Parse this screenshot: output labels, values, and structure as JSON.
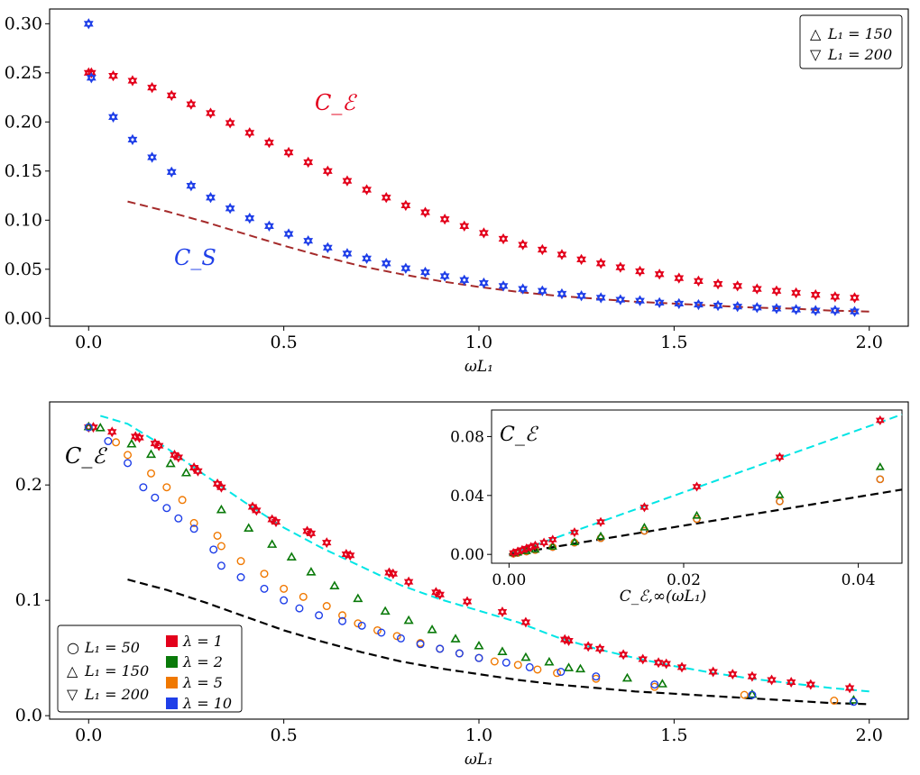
{
  "chart_data": [
    {
      "type": "scatter",
      "xlabel": "ωL₁",
      "ylabel": "",
      "xlim": [
        -0.1,
        2.1
      ],
      "ylim": [
        -0.008,
        0.315
      ],
      "xticks": [
        "0.0",
        "0.5",
        "1.0",
        "1.5",
        "2.0"
      ],
      "yticks": [
        "0.00",
        "0.05",
        "0.10",
        "0.15",
        "0.20",
        "0.25",
        "0.30"
      ],
      "xtick_values": [
        0,
        0.5,
        1.0,
        1.5,
        2.0
      ],
      "ytick_values": [
        0,
        0.05,
        0.1,
        0.15,
        0.2,
        0.25,
        0.3
      ],
      "legend": {
        "position": "top-right",
        "entries": [
          "L₁ = 150",
          "L₁ = 200"
        ],
        "markers": [
          "△",
          "▽"
        ]
      },
      "annotations": {
        "ce": "C_ℰ",
        "cs": "C_S",
        "ce_color": "#e3001b",
        "cs_color": "#1f3fe8"
      },
      "x": [
        0.0,
        0.007,
        0.063,
        0.1125,
        0.1625,
        0.2125,
        0.2625,
        0.3125,
        0.3625,
        0.4125,
        0.4625,
        0.5125,
        0.5625,
        0.6125,
        0.6625,
        0.7125,
        0.7625,
        0.8125,
        0.8625,
        0.9125,
        0.9625,
        1.0125,
        1.0625,
        1.1125,
        1.1625,
        1.2125,
        1.2625,
        1.3125,
        1.3625,
        1.4125,
        1.4625,
        1.5125,
        1.5625,
        1.6125,
        1.6625,
        1.7125,
        1.7625,
        1.8125,
        1.8625,
        1.9125,
        1.9625
      ],
      "series": [
        {
          "name": "C_ℰ",
          "color": "#e3001b",
          "values": [
            0.25,
            0.25,
            0.247,
            0.242,
            0.235,
            0.227,
            0.218,
            0.209,
            0.199,
            0.189,
            0.179,
            0.169,
            0.159,
            0.15,
            0.14,
            0.131,
            0.123,
            0.115,
            0.108,
            0.101,
            0.094,
            0.087,
            0.081,
            0.075,
            0.07,
            0.065,
            0.06,
            0.056,
            0.052,
            0.048,
            0.045,
            0.041,
            0.038,
            0.035,
            0.033,
            0.03,
            0.028,
            0.026,
            0.024,
            0.022,
            0.021
          ]
        },
        {
          "name": "C_S",
          "color": "#1f3fe8",
          "values": [
            0.3,
            0.245,
            0.205,
            0.182,
            0.164,
            0.149,
            0.135,
            0.123,
            0.112,
            0.102,
            0.094,
            0.086,
            0.079,
            0.072,
            0.066,
            0.061,
            0.056,
            0.051,
            0.047,
            0.043,
            0.039,
            0.036,
            0.033,
            0.03,
            0.028,
            0.025,
            0.023,
            0.021,
            0.019,
            0.018,
            0.016,
            0.015,
            0.014,
            0.013,
            0.012,
            0.011,
            0.01,
            0.009,
            0.008,
            0.008,
            0.007
          ]
        }
      ],
      "reference_curve": {
        "name": "dashed",
        "color": "#a52a2a",
        "x": [
          0.1,
          0.2,
          0.3,
          0.4,
          0.5,
          0.6,
          0.7,
          0.8,
          0.9,
          1.0,
          1.1,
          1.2,
          1.3,
          1.4,
          1.5,
          1.6,
          1.7,
          1.8,
          1.9,
          2.0
        ],
        "y": [
          0.119,
          0.109,
          0.098,
          0.086,
          0.074,
          0.063,
          0.053,
          0.045,
          0.038,
          0.032,
          0.027,
          0.023,
          0.02,
          0.017,
          0.015,
          0.013,
          0.011,
          0.01,
          0.008,
          0.007
        ]
      }
    },
    {
      "type": "scatter",
      "xlabel": "ωL₁",
      "ylabel": "",
      "xlim": [
        -0.1,
        2.1
      ],
      "ylim": [
        -0.003,
        0.272
      ],
      "xticks": [
        "0.0",
        "0.5",
        "1.0",
        "1.5",
        "2.0"
      ],
      "yticks": [
        "0.0",
        "0.1",
        "0.2"
      ],
      "xtick_values": [
        0,
        0.5,
        1.0,
        1.5,
        2.0
      ],
      "ytick_values": [
        0,
        0.1,
        0.2
      ],
      "annotation": "C_ℰ",
      "legend": {
        "position": "bottom-left",
        "shapes": [
          {
            "symbol": "○",
            "label": "L₁ = 50"
          },
          {
            "symbol": "△",
            "label": "L₁ = 150"
          },
          {
            "symbol": "▽",
            "label": "L₁ = 200"
          }
        ],
        "colors": [
          {
            "color": "#e3001b",
            "label": "λ = 1"
          },
          {
            "color": "#0a7a0a",
            "label": "λ = 2"
          },
          {
            "color": "#f07800",
            "label": "λ = 5"
          },
          {
            "color": "#1f3fe8",
            "label": "λ = 10"
          }
        ]
      },
      "series": [
        {
          "name": "λ = 1",
          "color": "#e3001b",
          "marker": "star",
          "x": [
            0.0,
            0.012,
            0.06,
            0.12,
            0.13,
            0.17,
            0.18,
            0.22,
            0.23,
            0.27,
            0.28,
            0.33,
            0.34,
            0.42,
            0.43,
            0.47,
            0.48,
            0.56,
            0.57,
            0.61,
            0.66,
            0.67,
            0.77,
            0.78,
            0.82,
            0.89,
            0.9,
            0.97,
            1.06,
            1.12,
            1.22,
            1.23,
            1.28,
            1.31,
            1.37,
            1.42,
            1.46,
            1.48,
            1.52,
            1.6,
            1.65,
            1.7,
            1.75,
            1.8,
            1.85,
            1.95
          ],
          "y": [
            0.25,
            0.25,
            0.246,
            0.242,
            0.241,
            0.236,
            0.234,
            0.226,
            0.224,
            0.215,
            0.212,
            0.201,
            0.198,
            0.181,
            0.178,
            0.17,
            0.168,
            0.16,
            0.158,
            0.15,
            0.14,
            0.139,
            0.124,
            0.123,
            0.116,
            0.107,
            0.105,
            0.099,
            0.09,
            0.081,
            0.066,
            0.065,
            0.06,
            0.058,
            0.053,
            0.049,
            0.046,
            0.045,
            0.042,
            0.038,
            0.036,
            0.034,
            0.031,
            0.029,
            0.027,
            0.024
          ]
        },
        {
          "name": "λ = 2",
          "color": "#0a7a0a",
          "marker": "triangle",
          "x": [
            0.0,
            0.03,
            0.11,
            0.16,
            0.21,
            0.25,
            0.34,
            0.41,
            0.47,
            0.52,
            0.57,
            0.63,
            0.69,
            0.76,
            0.82,
            0.88,
            0.94,
            1.0,
            1.06,
            1.12,
            1.18,
            1.23,
            1.26,
            1.38,
            1.47,
            1.7,
            1.96
          ],
          "y": [
            0.25,
            0.249,
            0.235,
            0.226,
            0.218,
            0.21,
            0.178,
            0.162,
            0.148,
            0.137,
            0.124,
            0.112,
            0.101,
            0.09,
            0.082,
            0.074,
            0.066,
            0.06,
            0.055,
            0.05,
            0.046,
            0.041,
            0.04,
            0.032,
            0.027,
            0.018,
            0.013
          ]
        },
        {
          "name": "λ = 5",
          "color": "#f07800",
          "marker": "circle",
          "x": [
            0.0,
            0.07,
            0.1,
            0.16,
            0.2,
            0.24,
            0.27,
            0.33,
            0.34,
            0.39,
            0.45,
            0.5,
            0.55,
            0.61,
            0.65,
            0.69,
            0.74,
            0.79,
            0.85,
            0.9,
            0.95,
            1.0,
            1.04,
            1.1,
            1.15,
            1.2,
            1.3,
            1.45,
            1.68,
            1.91
          ],
          "y": [
            0.25,
            0.237,
            0.226,
            0.21,
            0.198,
            0.187,
            0.167,
            0.156,
            0.147,
            0.134,
            0.123,
            0.11,
            0.103,
            0.095,
            0.087,
            0.08,
            0.074,
            0.069,
            0.063,
            0.058,
            0.054,
            0.05,
            0.047,
            0.044,
            0.04,
            0.037,
            0.032,
            0.025,
            0.018,
            0.013
          ]
        },
        {
          "name": "λ = 10",
          "color": "#1f3fe8",
          "marker": "circle",
          "x": [
            0.0,
            0.05,
            0.1,
            0.14,
            0.17,
            0.2,
            0.23,
            0.27,
            0.32,
            0.34,
            0.39,
            0.45,
            0.5,
            0.54,
            0.59,
            0.65,
            0.7,
            0.75,
            0.8,
            0.85,
            0.9,
            0.95,
            1.0,
            1.07,
            1.13,
            1.21,
            1.3,
            1.45,
            1.7,
            1.96
          ],
          "y": [
            0.25,
            0.238,
            0.219,
            0.198,
            0.189,
            0.18,
            0.171,
            0.162,
            0.144,
            0.13,
            0.12,
            0.11,
            0.1,
            0.093,
            0.087,
            0.082,
            0.078,
            0.072,
            0.067,
            0.062,
            0.058,
            0.054,
            0.05,
            0.046,
            0.042,
            0.038,
            0.034,
            0.027,
            0.018,
            0.012
          ]
        }
      ],
      "reference_curves": [
        {
          "name": "cyan dashed",
          "color": "#00e5e5",
          "x": [
            0.03,
            0.1,
            0.2,
            0.3,
            0.4,
            0.5,
            0.6,
            0.7,
            0.8,
            0.9,
            1.0,
            1.1,
            1.2,
            1.3,
            1.4,
            1.5,
            1.6,
            1.7,
            1.8,
            1.9,
            2.0
          ],
          "y": [
            0.26,
            0.253,
            0.232,
            0.208,
            0.185,
            0.163,
            0.145,
            0.129,
            0.113,
            0.101,
            0.091,
            0.081,
            0.068,
            0.058,
            0.05,
            0.043,
            0.037,
            0.032,
            0.028,
            0.024,
            0.021
          ]
        },
        {
          "name": "black dashed",
          "color": "#000000",
          "x": [
            0.1,
            0.2,
            0.3,
            0.4,
            0.5,
            0.6,
            0.7,
            0.8,
            0.9,
            1.0,
            1.1,
            1.2,
            1.3,
            1.4,
            1.5,
            1.6,
            1.7,
            1.8,
            1.9,
            2.0
          ],
          "y": [
            0.118,
            0.109,
            0.098,
            0.086,
            0.074,
            0.064,
            0.055,
            0.047,
            0.041,
            0.036,
            0.031,
            0.027,
            0.024,
            0.021,
            0.019,
            0.017,
            0.015,
            0.013,
            0.011,
            0.01
          ]
        }
      ],
      "inset": {
        "type": "scatter",
        "title": "C_ℰ",
        "xlabel": "C_ℰ,∞(ωL₁)",
        "xlim": [
          -0.002,
          0.045
        ],
        "ylim": [
          -0.006,
          0.098
        ],
        "xticks": [
          "0.00",
          "0.02",
          "0.04"
        ],
        "yticks": [
          "0.00",
          "0.04",
          "0.08"
        ],
        "xtick_values": [
          0,
          0.02,
          0.04
        ],
        "ytick_values": [
          0,
          0.04,
          0.08
        ],
        "points_lambda1": {
          "color": "#e3001b",
          "x": [
            0.0005,
            0.001,
            0.0015,
            0.002,
            0.0025,
            0.003,
            0.004,
            0.005,
            0.0075,
            0.0105,
            0.0155,
            0.0215,
            0.031,
            0.0425
          ],
          "y": [
            0.001,
            0.002,
            0.003,
            0.004,
            0.005,
            0.006,
            0.008,
            0.01,
            0.015,
            0.022,
            0.032,
            0.046,
            0.066,
            0.091
          ]
        },
        "points_lambda2": {
          "color": "#0a7a0a",
          "x": [
            0.0005,
            0.001,
            0.002,
            0.003,
            0.005,
            0.0075,
            0.0105,
            0.0155,
            0.0215,
            0.031,
            0.0425
          ],
          "y": [
            0.0005,
            0.001,
            0.002,
            0.003,
            0.005,
            0.008,
            0.012,
            0.018,
            0.026,
            0.04,
            0.059
          ]
        },
        "points_lambda5": {
          "color": "#f07800",
          "x": [
            0.0005,
            0.001,
            0.002,
            0.003,
            0.005,
            0.0075,
            0.0105,
            0.0155,
            0.0215,
            0.031,
            0.0425
          ],
          "y": [
            0.0005,
            0.001,
            0.002,
            0.003,
            0.005,
            0.008,
            0.011,
            0.016,
            0.024,
            0.036,
            0.051
          ]
        },
        "points_lambda10": {
          "color": "#1f3fe8",
          "x": [
            0.0005,
            0.001,
            0.002,
            0.003,
            0.005,
            0.0075,
            0.0105,
            0.0155,
            0.0215,
            0.031,
            0.0425
          ],
          "y": [
            0.0005,
            0.001,
            0.002,
            0.003,
            0.005,
            0.008,
            0.011,
            0.016,
            0.024,
            0.036,
            0.051
          ]
        },
        "reference_curves": [
          {
            "name": "cyan dashed",
            "color": "#00e5e5",
            "x": [
              0,
              0.045
            ],
            "y": [
              0,
              0.095
            ]
          },
          {
            "name": "black dashed",
            "color": "#000000",
            "x": [
              0,
              0.045
            ],
            "y": [
              0,
              0.044
            ]
          }
        ]
      }
    }
  ]
}
